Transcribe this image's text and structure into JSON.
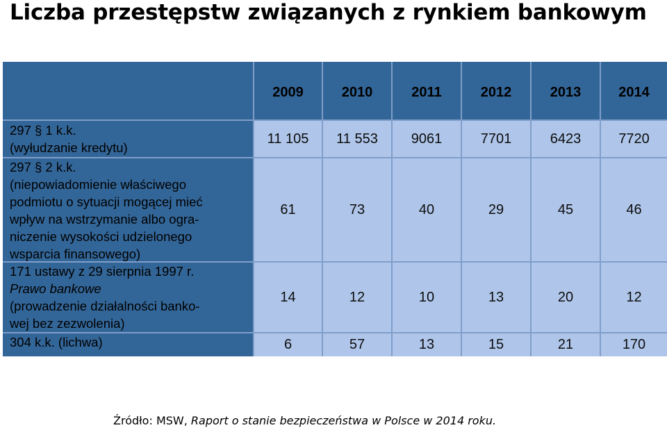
{
  "title": "Liczba przestępstw związanych z rynkiem bankowym",
  "table": {
    "years": [
      "2009",
      "2010",
      "2011",
      "2012",
      "2013",
      "2014"
    ],
    "rows": [
      {
        "label_lines": [
          "297 § 1 k.k.",
          "(wyłudzanie kredytu)"
        ],
        "values": [
          "11 105",
          "11 553",
          "9061",
          "7701",
          "6423",
          "7720"
        ]
      },
      {
        "label_lines": [
          "297 § 2 k.k.",
          "(niepowiadomienie właściwego",
          "podmiotu o sytuacji mogącej mieć",
          "wpływ na wstrzymanie albo ogra-",
          "niczenie wysokości udzielonego",
          "wsparcia finansowego)"
        ],
        "values": [
          "61",
          "73",
          "40",
          "29",
          "45",
          "46"
        ]
      },
      {
        "label_lines": [
          "171 ustawy z 29 sierpnia 1997 r.",
          "Prawo bankowe",
          "(prowadzenie działalności banko-",
          "wej bez zezwolenia)"
        ],
        "values": [
          "14",
          "12",
          "10",
          "13",
          "20",
          "12"
        ]
      },
      {
        "label_lines": [
          "304 k.k. (lichwa)"
        ],
        "values": [
          "6",
          "57",
          "13",
          "15",
          "21",
          "170"
        ]
      }
    ]
  },
  "source": {
    "prefix": "Źródło: MSW, ",
    "italic": "Raport o stanie bezpieczeństwa w Polsce w 2014 roku."
  }
}
